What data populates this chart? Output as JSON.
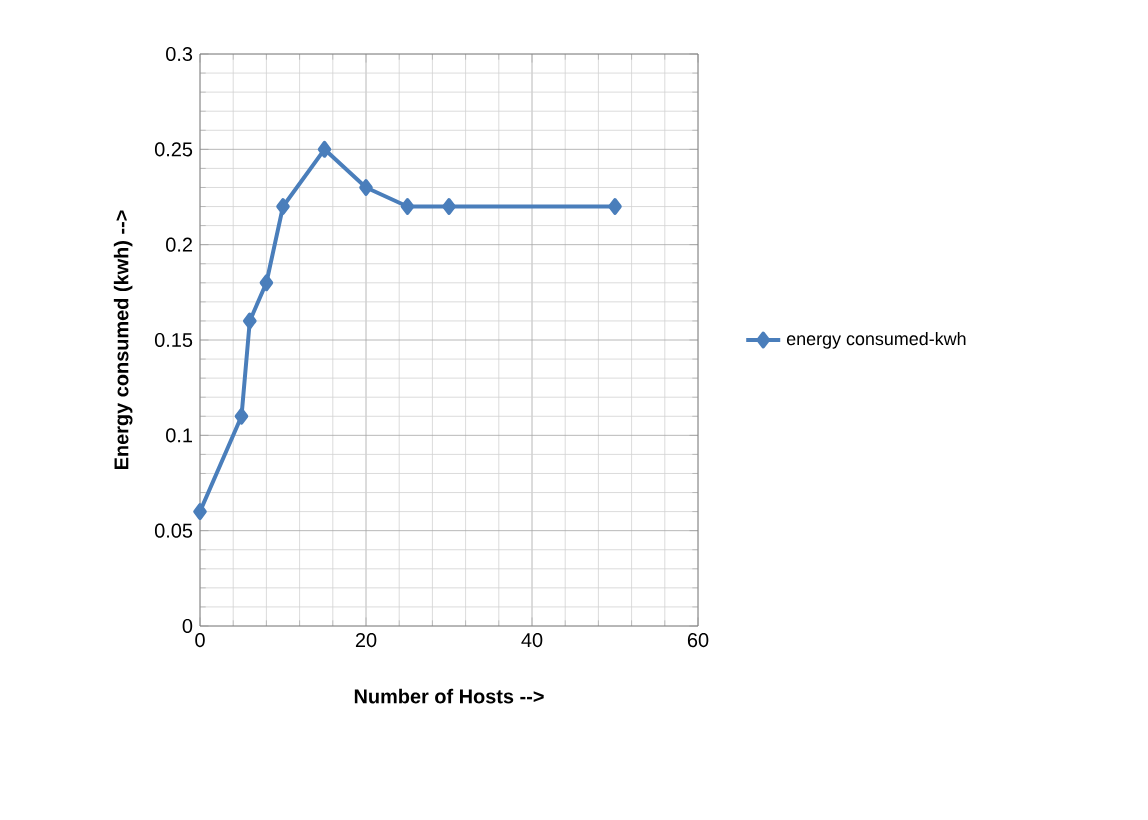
{
  "chart_data": {
    "type": "line",
    "xlabel": "Number of Hosts -->",
    "ylabel": "Energy consumed (kwh) -->",
    "x": [
      0,
      5,
      6,
      8,
      10,
      15,
      20,
      25,
      30,
      50
    ],
    "series": [
      {
        "name": "energy consumed-kwh",
        "color": "#4a7ebb",
        "values": [
          0.06,
          0.11,
          0.16,
          0.18,
          0.22,
          0.25,
          0.23,
          0.22,
          0.22,
          0.22
        ]
      }
    ],
    "xlim": [
      0,
      60
    ],
    "xticks": [
      0,
      20,
      40,
      60
    ],
    "ylim": [
      0,
      0.3
    ],
    "yticks": [
      0,
      0.05,
      0.1,
      0.15,
      0.2,
      0.25,
      0.3
    ],
    "grid": true,
    "legend": "right",
    "marker": "diamond",
    "line_style": "solid"
  }
}
